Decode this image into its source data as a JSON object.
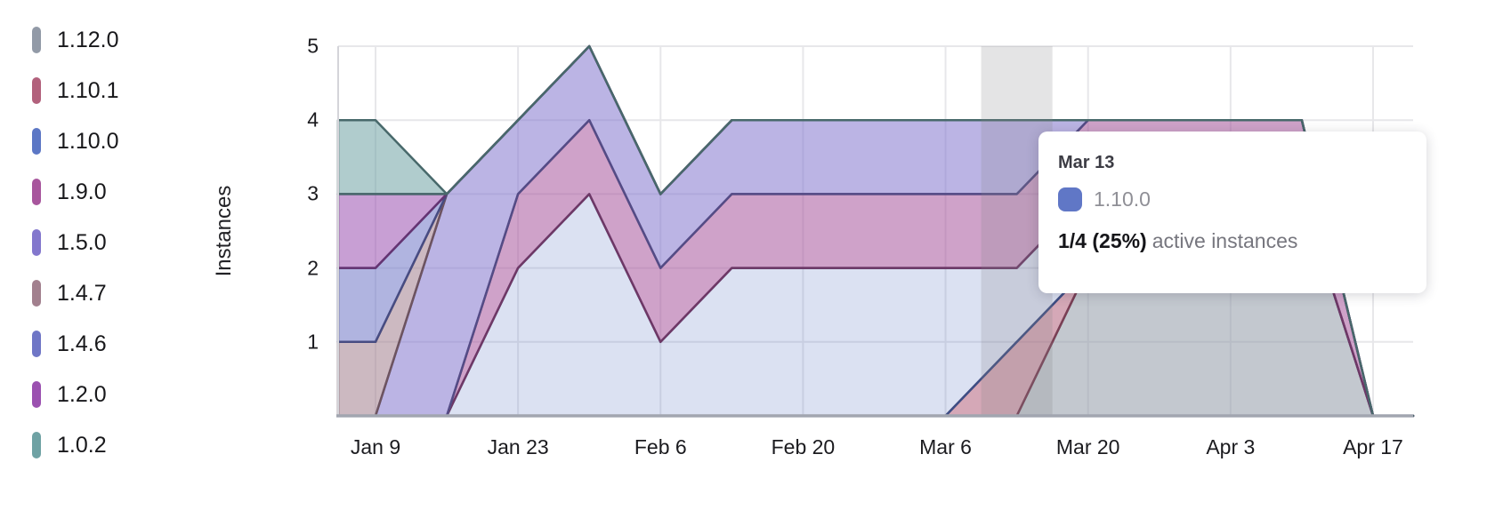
{
  "y_axis": {
    "title": "Instances",
    "ticks": [
      "5",
      "4",
      "3",
      "2",
      "1"
    ],
    "max": 5,
    "min": 0
  },
  "x_axis": {
    "ticks": [
      "Jan 9",
      "Jan 23",
      "Feb 6",
      "Feb 20",
      "Mar 6",
      "Mar 20",
      "Apr 3",
      "Apr 17"
    ]
  },
  "tooltip": {
    "date": "Mar 13",
    "series_label": "1.10.0",
    "swatch_color": "#6077c6",
    "value": "1/4 (25%)",
    "suffix": "active instances"
  },
  "chart_data": {
    "type": "area",
    "stacked": true,
    "title": "",
    "xlabel": "",
    "ylabel": "Instances",
    "ylim": [
      0,
      5
    ],
    "grid": true,
    "legend_position": "left",
    "x_tick_every": 2,
    "highlight_x": "Mar 13",
    "x": [
      "Jan 9",
      "Jan 16",
      "Jan 23",
      "Jan 30",
      "Feb 6",
      "Feb 13",
      "Feb 20",
      "Feb 27",
      "Mar 6",
      "Mar 13",
      "Mar 20",
      "Mar 27",
      "Apr 3",
      "Apr 10",
      "Apr 17"
    ],
    "stack_order": "first series at bottom",
    "series": [
      {
        "name": "1.12.0",
        "color": "#929aa7",
        "stroke": "#5f6570",
        "fill_opacity": 0.55,
        "values": [
          0,
          0,
          0,
          0,
          0,
          0,
          0,
          0,
          0,
          0,
          2,
          3,
          3,
          3,
          0
        ]
      },
      {
        "name": "1.10.1",
        "color": "#b2617c",
        "stroke": "#7a3f55",
        "fill_opacity": 0.55,
        "values": [
          0,
          0,
          0,
          0,
          0,
          0,
          0,
          0,
          0,
          1,
          0,
          0,
          0,
          0,
          0
        ]
      },
      {
        "name": "1.10.0",
        "color": "#5c77c5",
        "stroke": "#3d4e85",
        "fill_opacity": 0.22,
        "values": [
          0,
          0,
          2,
          3,
          1,
          2,
          2,
          2,
          2,
          1,
          1,
          0,
          0,
          0,
          0
        ]
      },
      {
        "name": "1.9.0",
        "color": "#a8569d",
        "stroke": "#6e3866",
        "fill_opacity": 0.55,
        "values": [
          0,
          0,
          1,
          1,
          1,
          1,
          1,
          1,
          1,
          1,
          1,
          1,
          1,
          1,
          0
        ]
      },
      {
        "name": "1.5.0",
        "color": "#8377cd",
        "stroke": "#544c86",
        "fill_opacity": 0.55,
        "values": [
          0,
          3,
          1,
          1,
          1,
          1,
          1,
          1,
          1,
          1,
          0,
          0,
          0,
          0,
          0
        ]
      },
      {
        "name": "1.4.7",
        "color": "#a2808e",
        "stroke": "#6d5460",
        "fill_opacity": 0.55,
        "values": [
          1,
          0,
          0,
          0,
          0,
          0,
          0,
          0,
          0,
          0,
          0,
          0,
          0,
          0,
          0
        ]
      },
      {
        "name": "1.4.6",
        "color": "#6f76c6",
        "stroke": "#474c82",
        "fill_opacity": 0.55,
        "values": [
          1,
          0,
          0,
          0,
          0,
          0,
          0,
          0,
          0,
          0,
          0,
          0,
          0,
          0,
          0
        ]
      },
      {
        "name": "1.2.0",
        "color": "#9b51b0",
        "stroke": "#653472",
        "fill_opacity": 0.55,
        "values": [
          1,
          0,
          0,
          0,
          0,
          0,
          0,
          0,
          0,
          0,
          0,
          0,
          0,
          0,
          0
        ]
      },
      {
        "name": "1.0.2",
        "color": "#6fa2a4",
        "stroke": "#48696b",
        "fill_opacity": 0.55,
        "values": [
          1,
          0,
          0,
          0,
          0,
          0,
          0,
          0,
          0,
          0,
          0,
          0,
          0,
          0,
          0
        ]
      }
    ]
  },
  "colors": {
    "gridline": "#e7e7ea",
    "y_axis_line": "#d4d4d9",
    "baseline": "#a2a6b0",
    "highlight_band": "rgba(130,130,138,0.22)"
  }
}
